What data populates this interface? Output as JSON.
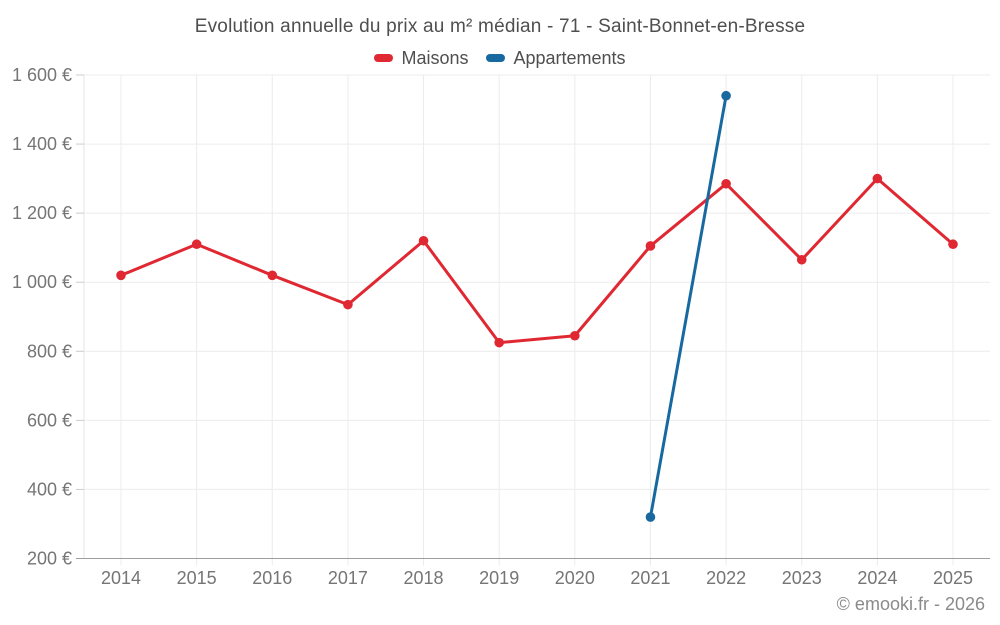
{
  "page": {
    "title": "Evolution annuelle du prix au m² médian - 71 - Saint-Bonnet-en-Bresse",
    "footer": "© emooki.fr - 2026"
  },
  "legend": {
    "items": [
      {
        "label": "Maisons",
        "color": "#e02832"
      },
      {
        "label": "Appartements",
        "color": "#1769a0"
      }
    ]
  },
  "chart_data": {
    "type": "line",
    "title": "Evolution annuelle du prix au m² médian - 71 - Saint-Bonnet-en-Bresse",
    "categories": [
      "2014",
      "2015",
      "2016",
      "2017",
      "2018",
      "2019",
      "2020",
      "2021",
      "2022",
      "2023",
      "2024",
      "2025"
    ],
    "series": [
      {
        "name": "Maisons",
        "color": "#e02832",
        "values": [
          1020,
          1110,
          1020,
          935,
          1120,
          825,
          845,
          1105,
          1285,
          1065,
          1300,
          1110
        ]
      },
      {
        "name": "Appartements",
        "color": "#1769a0",
        "values": [
          null,
          null,
          null,
          null,
          null,
          null,
          null,
          320,
          1540,
          null,
          null,
          null
        ]
      }
    ],
    "xlabel": "",
    "ylabel": "",
    "ylim": [
      200,
      1600
    ],
    "ytick_step": 200,
    "ytick_labels": [
      "200 €",
      "400 €",
      "600 €",
      "800 €",
      "1 000 €",
      "1 200 €",
      "1 400 €",
      "1 600 €"
    ],
    "grid": true,
    "legend_position": "top",
    "footer": "© emooki.fr - 2026"
  },
  "style": {
    "background": "#ffffff",
    "grid_color": "#ececec",
    "plot_border_color": "#e6e6e6",
    "axis_line_color": "#9e9e9e",
    "tick_color": "#cccccc",
    "axis_label_color": "#757575",
    "title_color": "#4f4f4f",
    "legend_label_color": "#4f4f4f",
    "footer_color": "#8a8a8a"
  }
}
